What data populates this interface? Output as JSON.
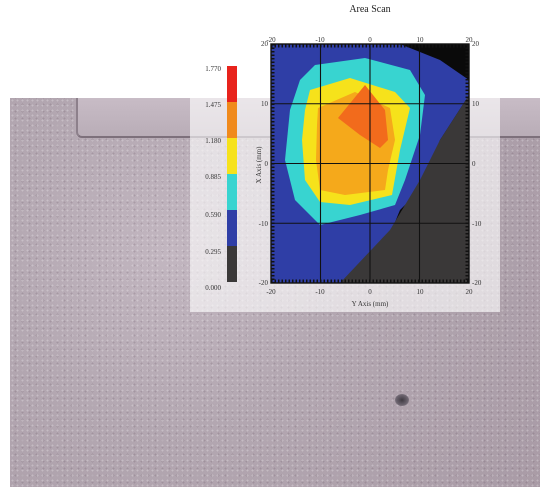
{
  "chart_data": {
    "type": "heatmap",
    "title": "Area Scan",
    "xlabel": "Y Axis (mm)",
    "ylabel": "X Axis (mm)",
    "xlim": [
      -20,
      20
    ],
    "ylim": [
      -20,
      20
    ],
    "ticks": [
      "-20",
      "-10",
      "0",
      "10",
      "20"
    ],
    "tick_values": [
      -20,
      -10,
      0,
      10,
      20
    ],
    "grid": true,
    "colorbar": {
      "labels": [
        "1.770",
        "1.475",
        "1.180",
        "0.885",
        "0.590",
        "0.295",
        "0.000"
      ],
      "colors": [
        "#e8231c",
        "#f08a1c",
        "#f6e21b",
        "#38d4d0",
        "#2f3ea6",
        "#3a3838"
      ]
    },
    "contour_levels": [
      {
        "level": "0.000-0.295",
        "color": "#3a3838"
      },
      {
        "level": "0.295-0.590",
        "color": "#2f3ea6"
      },
      {
        "level": "0.590-0.885",
        "color": "#38d4d0"
      },
      {
        "level": "0.885-1.180",
        "color": "#f6e21b"
      },
      {
        "level": "1.180-1.475",
        "color": "#f5a91b"
      },
      {
        "level": "1.475-1.770",
        "color": "#f26b1c"
      }
    ]
  }
}
